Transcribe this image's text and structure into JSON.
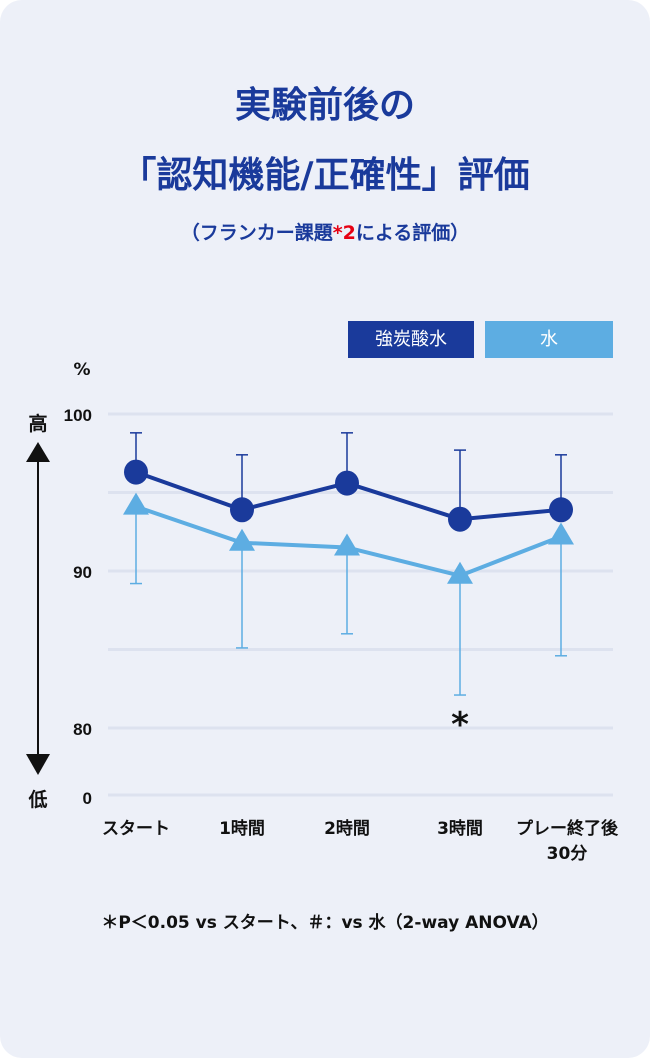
{
  "title_line1": "実験前後の",
  "title_line2": "「認知機能/正確性」評価",
  "subtitle_pre": "（フランカー課題",
  "subtitle_note": "*2",
  "subtitle_post": "による評価）",
  "footnote": "＊P＜0.05 vs スタート、＃：vs 水（2-way ANOVA）",
  "colors": {
    "carbonated": "#1a3a9b",
    "water": "#5dade2",
    "background": "#edf0f8"
  },
  "chart_data": {
    "type": "line",
    "ylabel": "%",
    "y_high_label": "高",
    "y_low_label": "低",
    "yticks": [
      "100",
      "90",
      "80",
      "0"
    ],
    "ylim": [
      80,
      100
    ],
    "axis_break": "80 to 0",
    "grid": true,
    "legend_placement": "top-right",
    "categories": [
      "スタート",
      "1時間",
      "2時間",
      "3時間",
      "プレー終了後\n30分"
    ],
    "series": [
      {
        "name": "強炭酸水",
        "marker": "circle",
        "values": [
          96.3,
          93.9,
          95.6,
          93.3,
          93.9
        ],
        "error_upper": [
          98.8,
          97.4,
          98.8,
          97.7,
          97.4
        ]
      },
      {
        "name": "水",
        "marker": "triangle",
        "values": [
          94.1,
          91.8,
          91.5,
          89.7,
          92.2
        ],
        "error_lower": [
          89.2,
          85.1,
          86.0,
          82.1,
          84.6
        ]
      }
    ],
    "annotations": [
      {
        "category": "3時間",
        "text": "*"
      }
    ]
  }
}
